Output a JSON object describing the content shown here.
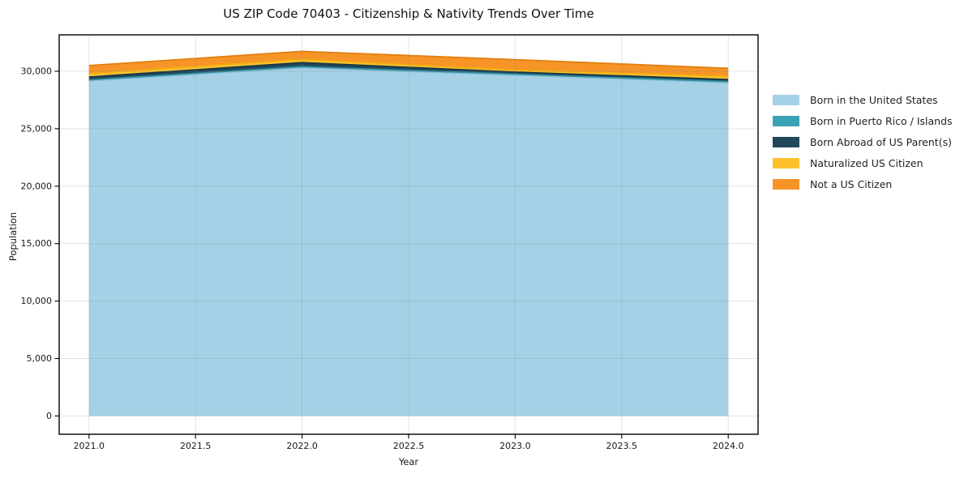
{
  "chart_data": {
    "type": "area",
    "stacked": true,
    "title": "US ZIP Code 70403 - Citizenship & Nativity Trends Over Time",
    "xlabel": "Year",
    "ylabel": "Population",
    "x": [
      2021,
      2022,
      2023,
      2024
    ],
    "series": [
      {
        "name": "Born in the United States",
        "color": "#a5d1e6",
        "edge_color": "#8fc2db",
        "values": [
          29150,
          30300,
          29650,
          29000
        ]
      },
      {
        "name": "Born in Puerto Rico / Islands",
        "color": "#3ba2b5",
        "edge_color": "#2f8ea1",
        "values": [
          100,
          100,
          100,
          100
        ]
      },
      {
        "name": "Born Abroad of US Parent(s)",
        "color": "#21485a",
        "edge_color": "#183848",
        "values": [
          250,
          350,
          180,
          180
        ]
      },
      {
        "name": "Naturalized US Citizen",
        "color": "#fcc12d",
        "edge_color": "#f0ae12",
        "values": [
          300,
          280,
          180,
          280
        ]
      },
      {
        "name": "Not a US Citizen",
        "color": "#f79428",
        "edge_color": "#e17f0e",
        "values": [
          700,
          700,
          900,
          700
        ]
      }
    ],
    "x_ticks": [
      2021.0,
      2021.5,
      2022.0,
      2022.5,
      2023.0,
      2023.5,
      2024.0
    ],
    "x_tick_labels": [
      "2021.0",
      "2021.5",
      "2022.0",
      "2022.5",
      "2023.0",
      "2023.5",
      "2024.0"
    ],
    "y_ticks": [
      0,
      5000,
      10000,
      15000,
      20000,
      25000,
      30000
    ],
    "y_tick_labels": [
      "0",
      "5,000",
      "10,000",
      "15,000",
      "20,000",
      "25,000",
      "30,000"
    ],
    "xlim": [
      2020.86,
      2024.14
    ],
    "ylim": [
      -1590,
      33170
    ],
    "grid": true,
    "legend_position": "right of plot, outside",
    "colors": {
      "background": "#ffffff",
      "plot_border": "#000000",
      "gridline": "rgba(130,130,130,0.22)",
      "tick": "#000000",
      "tick_text": "#1a1a1a"
    }
  }
}
